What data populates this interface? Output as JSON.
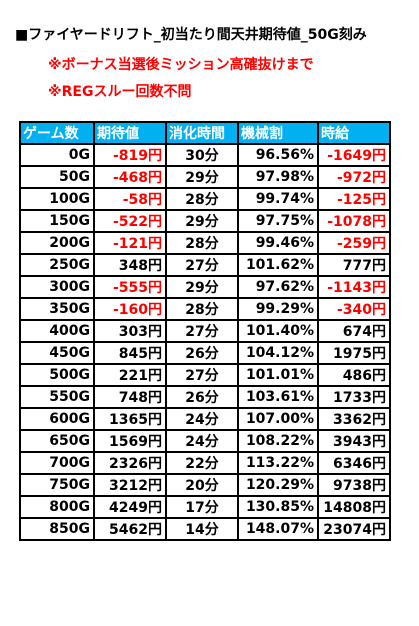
{
  "title": "■ファイヤードリフト_初当たり間天井期待値_50G刻み",
  "notes": [
    "※ボーナス当選後ミッション高確抜けまで",
    "※REGスルー回数不問"
  ],
  "table": {
    "headers": [
      "ゲーム数",
      "期待値",
      "消化時間",
      "機械割",
      "時給"
    ],
    "rows": [
      [
        "0G",
        "-819円",
        "30分",
        "96.56%",
        "-1649円"
      ],
      [
        "50G",
        "-468円",
        "29分",
        "97.98%",
        "-972円"
      ],
      [
        "100G",
        "-58円",
        "28分",
        "99.74%",
        "-125円"
      ],
      [
        "150G",
        "-522円",
        "29分",
        "97.75%",
        "-1078円"
      ],
      [
        "200G",
        "-121円",
        "28分",
        "99.46%",
        "-259円"
      ],
      [
        "250G",
        "348円",
        "27分",
        "101.62%",
        "777円"
      ],
      [
        "300G",
        "-555円",
        "29分",
        "97.62%",
        "-1143円"
      ],
      [
        "350G",
        "-160円",
        "28分",
        "99.29%",
        "-340円"
      ],
      [
        "400G",
        "303円",
        "27分",
        "101.40%",
        "674円"
      ],
      [
        "450G",
        "845円",
        "26分",
        "104.12%",
        "1975円"
      ],
      [
        "500G",
        "221円",
        "27分",
        "101.01%",
        "486円"
      ],
      [
        "550G",
        "748円",
        "26分",
        "103.61%",
        "1733円"
      ],
      [
        "600G",
        "1365円",
        "24分",
        "107.00%",
        "3362円"
      ],
      [
        "650G",
        "1569円",
        "24分",
        "108.22%",
        "3943円"
      ],
      [
        "700G",
        "2326円",
        "22分",
        "113.22%",
        "6346円"
      ],
      [
        "750G",
        "3212円",
        "20分",
        "120.29%",
        "9738円"
      ],
      [
        "800G",
        "4249円",
        "17分",
        "130.85%",
        "14808円"
      ],
      [
        "850G",
        "5462円",
        "14分",
        "148.07%",
        "23074円"
      ]
    ]
  },
  "colors": {
    "header_bg": "#00b0f0",
    "header_text": "#ffffff",
    "negative": "#ff0000",
    "note": "#ff0000"
  }
}
